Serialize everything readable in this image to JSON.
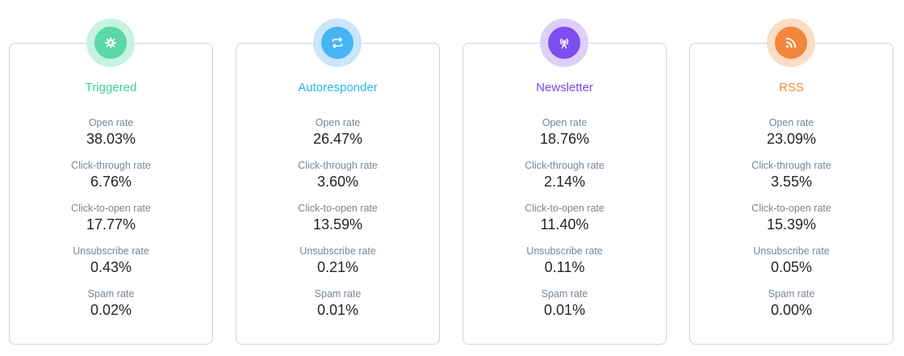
{
  "cards": [
    {
      "title": "Triggered",
      "icon": "gear-icon",
      "color": "#3ccf9a",
      "ring": "#c7f2e2",
      "fill": "#5ad8a6",
      "metrics": [
        {
          "label": "Open rate",
          "value": "38.03%"
        },
        {
          "label": "Click-through rate",
          "value": "6.76%"
        },
        {
          "label": "Click-to-open rate",
          "value": "17.77%"
        },
        {
          "label": "Unsubscribe rate",
          "value": "0.43%"
        },
        {
          "label": "Spam rate",
          "value": "0.02%"
        }
      ]
    },
    {
      "title": "Autoresponder",
      "icon": "repeat-icon",
      "color": "#29b6e8",
      "ring": "#c9e6fb",
      "fill": "#46b5f3",
      "metrics": [
        {
          "label": "Open rate",
          "value": "26.47%"
        },
        {
          "label": "Click-through rate",
          "value": "3.60%"
        },
        {
          "label": "Click-to-open rate",
          "value": "13.59%"
        },
        {
          "label": "Unsubscribe rate",
          "value": "0.21%"
        },
        {
          "label": "Spam rate",
          "value": "0.01%"
        }
      ]
    },
    {
      "title": "Newsletter",
      "icon": "broadcast-icon",
      "color": "#7b4ae2",
      "ring": "#ddd0f8",
      "fill": "#7c4ef0",
      "metrics": [
        {
          "label": "Open rate",
          "value": "18.76%"
        },
        {
          "label": "Click-through rate",
          "value": "2.14%"
        },
        {
          "label": "Click-to-open rate",
          "value": "11.40%"
        },
        {
          "label": "Unsubscribe rate",
          "value": "0.11%"
        },
        {
          "label": "Spam rate",
          "value": "0.01%"
        }
      ]
    },
    {
      "title": "RSS",
      "icon": "rss-icon",
      "color": "#f08a3c",
      "ring": "#fbdcc4",
      "fill": "#f2873c",
      "metrics": [
        {
          "label": "Open rate",
          "value": "23.09%"
        },
        {
          "label": "Click-through rate",
          "value": "3.55%"
        },
        {
          "label": "Click-to-open rate",
          "value": "15.39%"
        },
        {
          "label": "Unsubscribe rate",
          "value": "0.05%"
        },
        {
          "label": "Spam rate",
          "value": "0.00%"
        }
      ]
    }
  ]
}
